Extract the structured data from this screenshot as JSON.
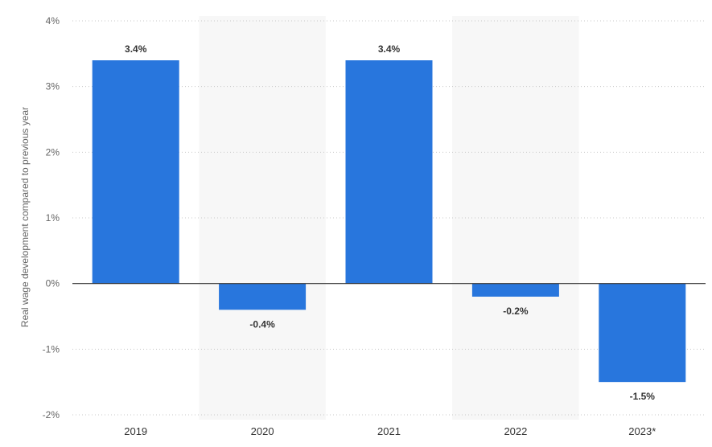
{
  "chart_data": {
    "type": "bar",
    "categories": [
      "2019",
      "2020",
      "2021",
      "2022",
      "2023*"
    ],
    "values": [
      3.4,
      -0.4,
      3.4,
      -0.2,
      -1.5
    ],
    "value_labels": [
      "3.4%",
      "-0.4%",
      "3.4%",
      "-0.2%",
      "-1.5%"
    ],
    "title": "",
    "xlabel": "",
    "ylabel": "Real wage development compared to previous year",
    "ylim": [
      -2,
      4
    ],
    "yticks": [
      4,
      3,
      2,
      1,
      0,
      -1,
      -2
    ],
    "ytick_labels": [
      "4%",
      "3%",
      "2%",
      "1%",
      "0%",
      "-1%",
      "-2%"
    ],
    "grid": true,
    "legend": "none",
    "bar_color": "#2876dd",
    "alternate_band_color": "#f7f7f7"
  }
}
